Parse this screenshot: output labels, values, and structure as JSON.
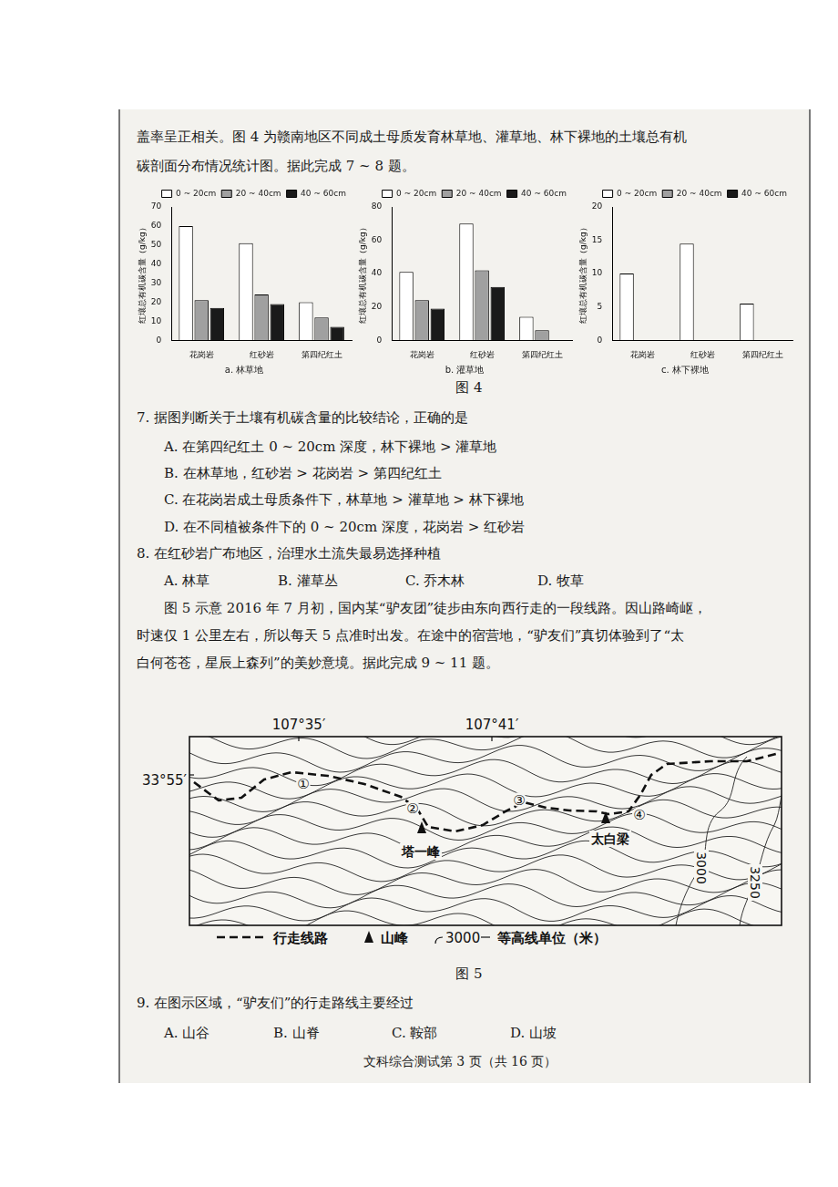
{
  "intro_lines": [
    "盖率呈正相关。图 4 为赣南地区不同成土母质发育林草地、灌草地、林下裸地的土壤总有机",
    "碳剖面分布情况统计图。据此完成 7 ~ 8 题。"
  ],
  "chart_data": [
    {
      "type": "bar",
      "title": "a. 林草地",
      "y_label": "红壤总有机碳含量（g/kg）",
      "categories": [
        "花岗岩",
        "红砂岩",
        "第四纪红土"
      ],
      "series": [
        {
          "name": "0 ~ 20cm",
          "color": "#ffffff",
          "values": [
            60,
            51,
            20
          ]
        },
        {
          "name": "20 ~ 40cm",
          "color": "#a0a0a0",
          "values": [
            21,
            24,
            12
          ]
        },
        {
          "name": "40 ~ 60cm",
          "color": "#1a1a1a",
          "values": [
            17,
            19,
            7
          ]
        }
      ],
      "ylim": [
        0,
        70
      ],
      "yticks": [
        0,
        10,
        20,
        30,
        40,
        50,
        60,
        70
      ],
      "grid": false,
      "legend": "upper right"
    },
    {
      "type": "bar",
      "title": "b. 灌草地",
      "y_label": "红壤总有机碳含量（g/kg）",
      "categories": [
        "花岗岩",
        "红砂岩",
        "第四纪红土"
      ],
      "series": [
        {
          "name": "0 ~ 20cm",
          "color": "#ffffff",
          "values": [
            41,
            70,
            14
          ]
        },
        {
          "name": "20 ~ 40cm",
          "color": "#a0a0a0",
          "values": [
            24,
            42,
            6
          ]
        },
        {
          "name": "40 ~ 60cm",
          "color": "#1a1a1a",
          "values": [
            19,
            32,
            null
          ]
        }
      ],
      "ylim": [
        0,
        80
      ],
      "yticks": [
        0,
        20,
        40,
        60,
        80
      ],
      "grid": false,
      "legend": "upper right"
    },
    {
      "type": "bar",
      "title": "c. 林下裸地",
      "y_label": "红壤总有机碳含量（g/kg）",
      "categories": [
        "花岗岩",
        "红砂岩",
        "第四纪红土"
      ],
      "series": [
        {
          "name": "0 ~ 20cm",
          "color": "#ffffff",
          "values": [
            10,
            14.5,
            5.5
          ]
        },
        {
          "name": "20 ~ 40cm",
          "color": "#a0a0a0",
          "values": [
            null,
            null,
            null
          ]
        },
        {
          "name": "40 ~ 60cm",
          "color": "#1a1a1a",
          "values": [
            null,
            null,
            null
          ]
        }
      ],
      "ylim": [
        0,
        20
      ],
      "yticks": [
        0,
        5,
        10,
        15,
        20
      ],
      "grid": false,
      "legend": "upper right"
    }
  ],
  "figure4_caption": "图 4",
  "question7": {
    "stem": "7. 据图判断关于土壤有机碳含量的比较结论，正确的是",
    "options": [
      "A. 在第四纪红土 0 ~ 20cm 深度，林下裸地 > 灌草地",
      "B. 在林草地，红砂岩 > 花岗岩 > 第四纪红土",
      "C. 在花岗岩成土母质条件下，林草地 > 灌草地 > 林下裸地",
      "D. 在不同植被条件下的 0 ~ 20cm 深度，花岗岩 > 红砂岩"
    ]
  },
  "question8": {
    "stem": "8. 在红砂岩广布地区，治理水土流失最易选择种植",
    "options": [
      "A. 林草",
      "B. 灌草丛",
      "C. 乔木林",
      "D. 牧草"
    ]
  },
  "passage_lines": [
    "图 5 示意 2016 年 7 月初，国内某“驴友团”徒步由东向西行走的一段线路。因山路崎岖，",
    "时速仅 1 公里左右，所以每天 5 点准时出发。在途中的宿营地，“驴友们”真切体验到了“太",
    "白何苍苍，星辰上森列”的美妙意境。据此完成 9 ~ 11 题。"
  ],
  "figure5": {
    "longitudes": [
      "107°35′",
      "107°41′"
    ],
    "latitude": "33°55′",
    "stops": [
      "①",
      "②",
      "③",
      "④"
    ],
    "peaks": [
      "塔一峰",
      "太白梁"
    ],
    "contour_labels": [
      "3000",
      "3250"
    ],
    "map_key": {
      "route": "行走线路",
      "peak": "山峰",
      "contour_value": "3000",
      "contour": "等高线单位（米）"
    },
    "caption": "图 5"
  },
  "question9": {
    "stem": "9. 在图示区域，“驴友们”的行走路线主要经过",
    "options": [
      "A. 山谷",
      "B. 山脊",
      "C. 鞍部",
      "D. 山坡"
    ]
  },
  "footer": "文科综合测试第 3 页（共 16 页）"
}
